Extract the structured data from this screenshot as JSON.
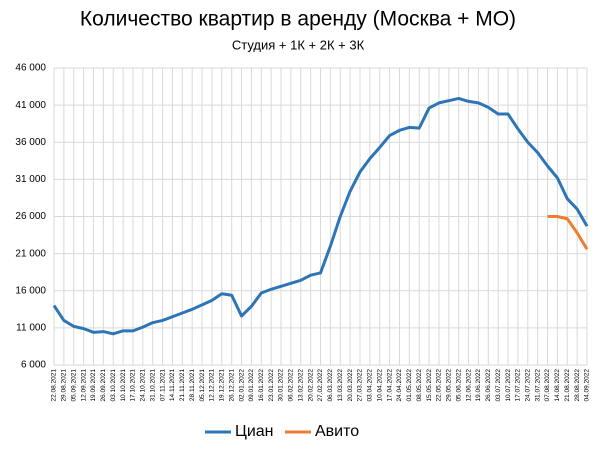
{
  "chart_data": {
    "type": "line",
    "title": "Количество квартир в аренду (Москва + МО)",
    "subtitle": "Студия + 1К + 2К + 3К",
    "categories": [
      "22.08.2021",
      "29.08.2021",
      "05.09.2021",
      "12.09.2021",
      "19.09.2021",
      "26.09.2021",
      "03.10.2021",
      "10.10.2021",
      "17.10.2021",
      "24.10.2021",
      "31.10.2021",
      "07.11.2021",
      "14.11.2021",
      "21.11.2021",
      "28.11.2021",
      "05.12.2021",
      "12.12.2021",
      "19.12.2021",
      "26.12.2021",
      "02.01.2022",
      "09.01.2022",
      "16.01.2022",
      "23.01.2022",
      "30.01.2022",
      "06.02.2022",
      "13.02.2022",
      "20.02.2022",
      "27.02.2022",
      "06.03.2022",
      "13.03.2022",
      "20.03.2022",
      "27.03.2022",
      "03.04.2022",
      "10.04.2022",
      "17.04.2022",
      "24.04.2022",
      "01.05.2022",
      "08.05.2022",
      "15.05.2022",
      "22.05.2022",
      "29.05.2022",
      "05.06.2022",
      "12.06.2022",
      "19.06.2022",
      "26.06.2022",
      "03.07.2022",
      "10.07.2022",
      "17.07.2022",
      "24.07.2022",
      "31.07.2022",
      "07.08.2022",
      "14.08.2022",
      "21.08.2022",
      "28.08.2022",
      "04.09.2022"
    ],
    "series": [
      {
        "name": "Циан",
        "color": "#2e75b6",
        "values": [
          14000,
          12000,
          11200,
          10900,
          10400,
          10500,
          10200,
          10600,
          10600,
          11100,
          11700,
          12000,
          12500,
          13000,
          13500,
          14100,
          14700,
          15600,
          15400,
          12600,
          13900,
          15700,
          16200,
          16600,
          17000,
          17400,
          18100,
          18400,
          22000,
          26000,
          29400,
          32000,
          33800,
          35300,
          36900,
          37600,
          38000,
          37900,
          40600,
          41300,
          41600,
          41900,
          41500,
          41300,
          40700,
          39800,
          39800,
          37800,
          36000,
          34600,
          32800,
          31200,
          28400,
          27000,
          24700
        ]
      },
      {
        "name": "Авито",
        "color": "#ed7d31",
        "values": [
          null,
          null,
          null,
          null,
          null,
          null,
          null,
          null,
          null,
          null,
          null,
          null,
          null,
          null,
          null,
          null,
          null,
          null,
          null,
          null,
          null,
          null,
          null,
          null,
          null,
          null,
          null,
          null,
          null,
          null,
          null,
          null,
          null,
          null,
          null,
          null,
          null,
          null,
          null,
          null,
          null,
          null,
          null,
          null,
          null,
          null,
          null,
          null,
          null,
          null,
          26000,
          26000,
          25700,
          23800,
          21600
        ]
      }
    ],
    "ylim": [
      6000,
      46000
    ],
    "yticks": [
      {
        "value": 6000,
        "label": "6 000"
      },
      {
        "value": 11000,
        "label": "11 000"
      },
      {
        "value": 16000,
        "label": "16 000"
      },
      {
        "value": 21000,
        "label": "21 000"
      },
      {
        "value": 26000,
        "label": "26 000"
      },
      {
        "value": 31000,
        "label": "31 000"
      },
      {
        "value": 36000,
        "label": "36 000"
      },
      {
        "value": 41000,
        "label": "41 000"
      },
      {
        "value": 46000,
        "label": "46 000"
      }
    ],
    "grid": true,
    "legend": "bottom"
  }
}
